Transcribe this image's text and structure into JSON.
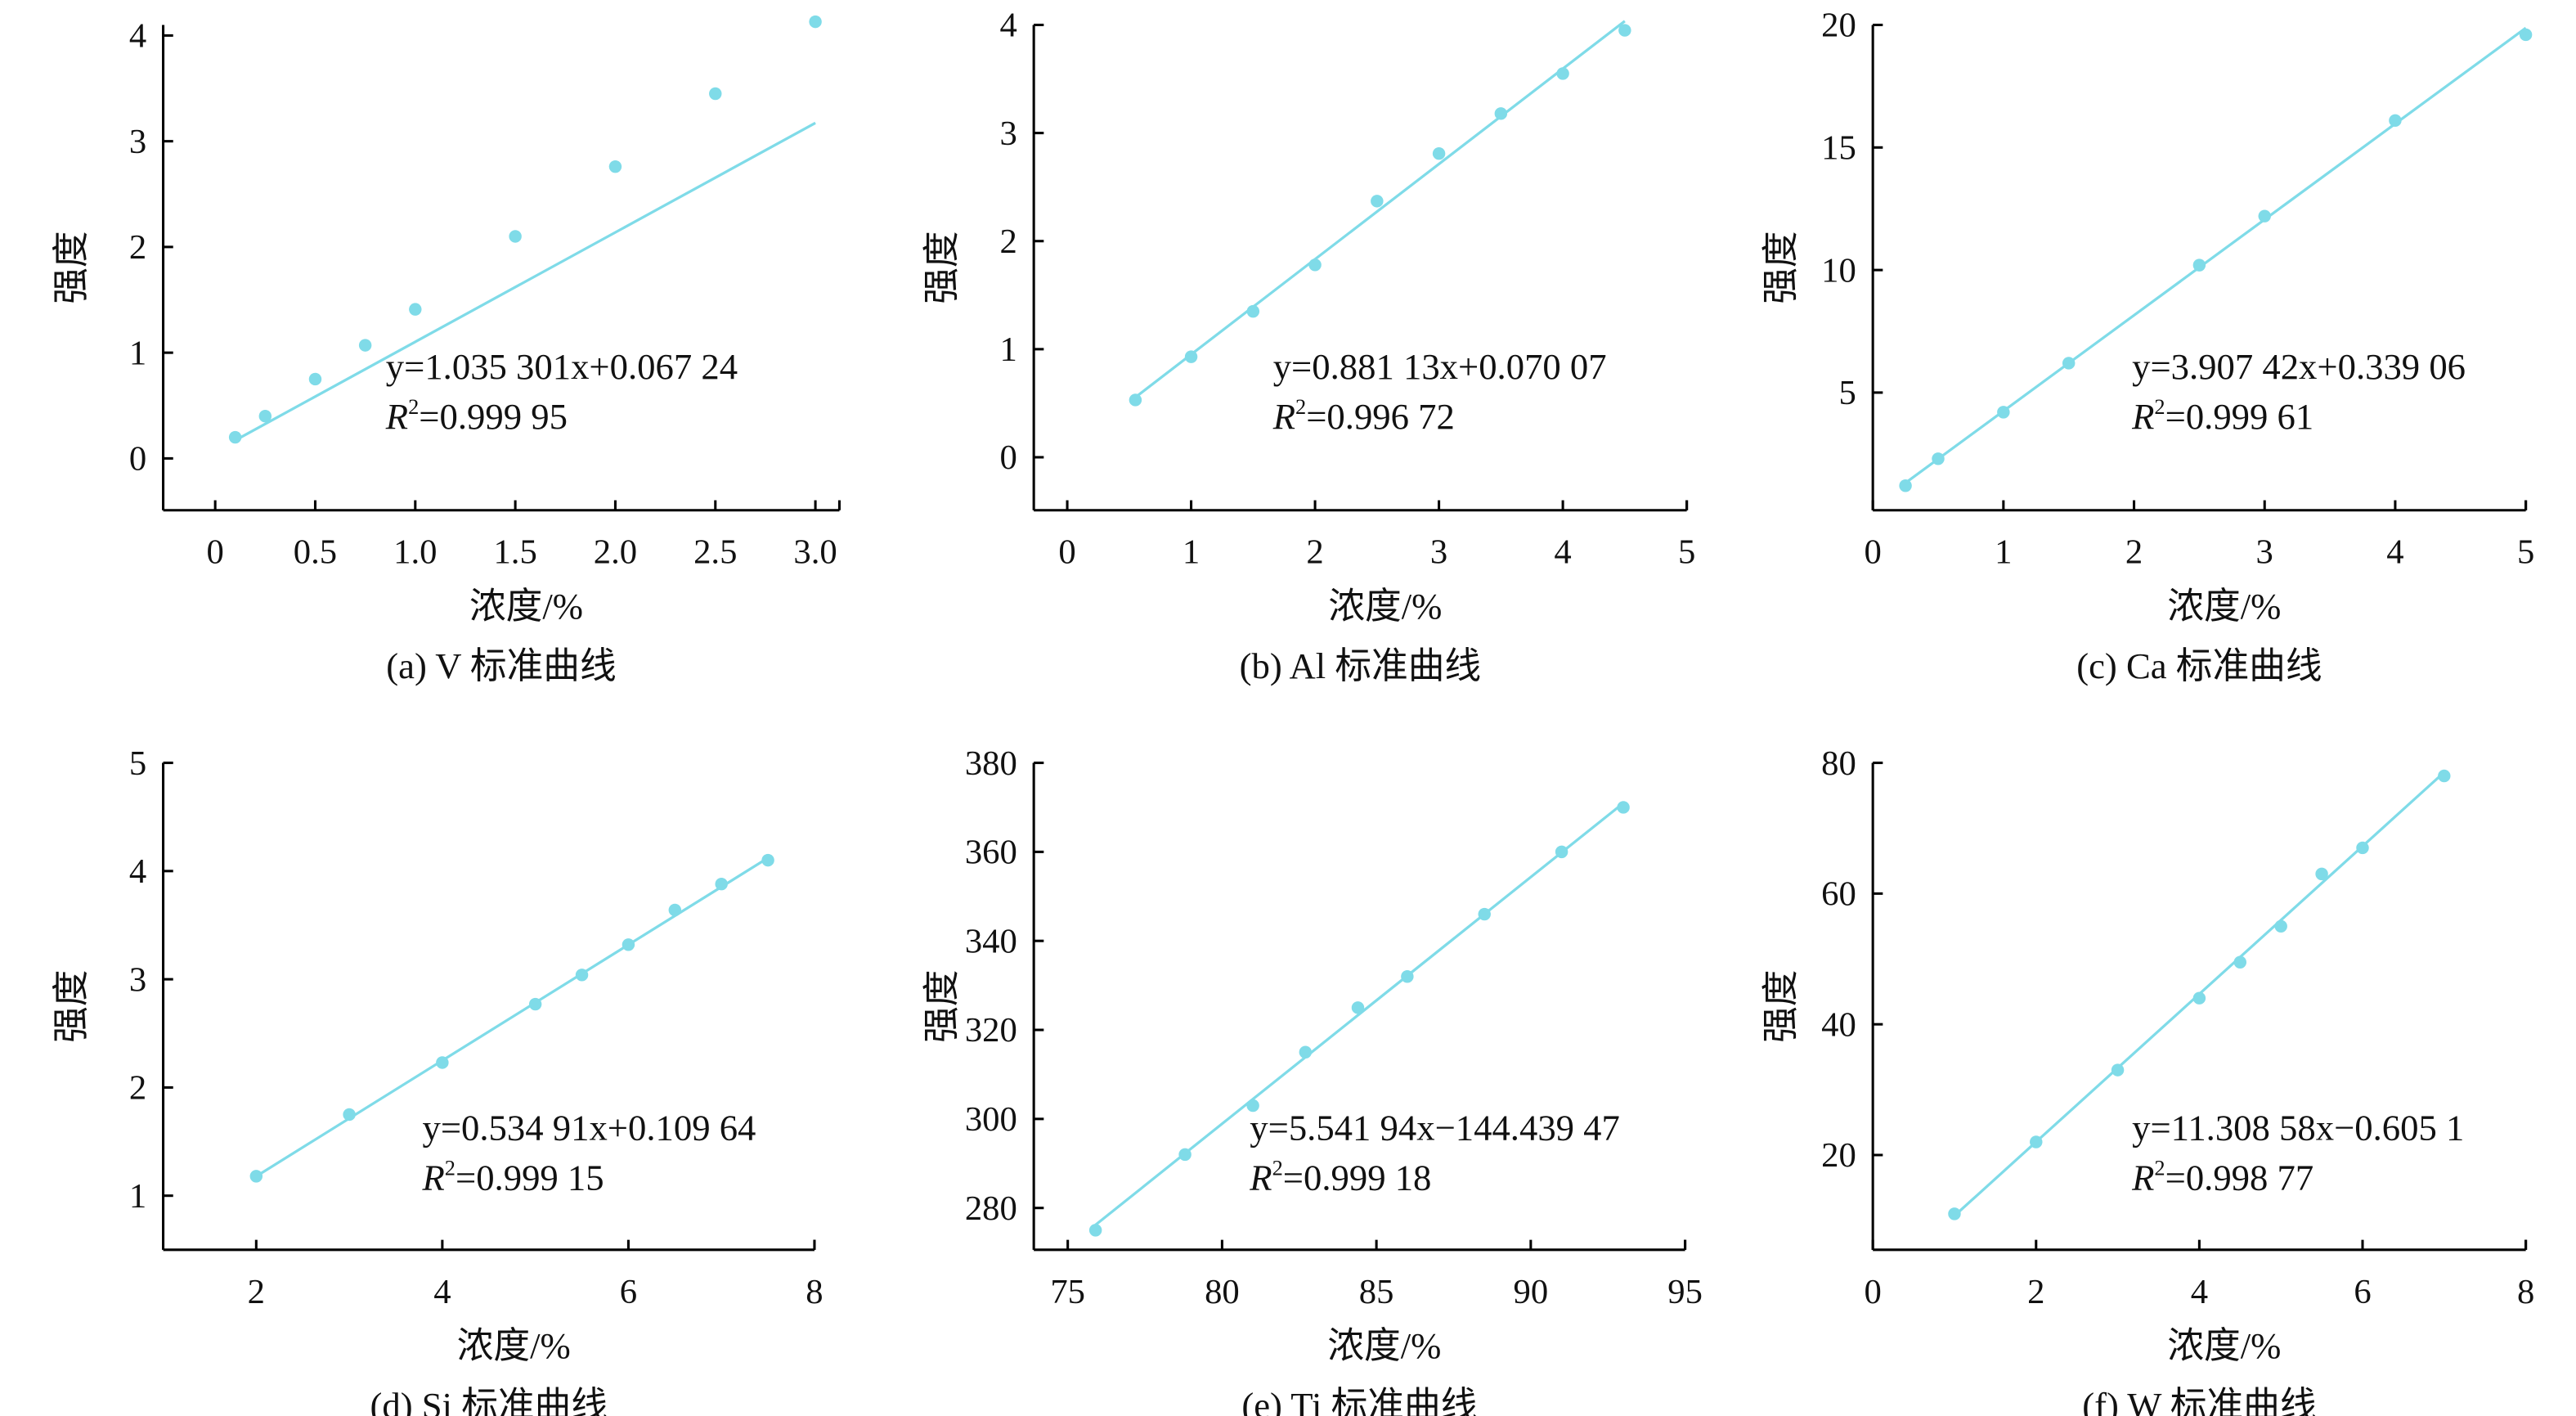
{
  "chart_data": [
    {
      "type": "scatter",
      "caption": "(a) V 标准曲线",
      "xlabel": "浓度/%",
      "ylabel": "强度",
      "xlim": [
        -0.26,
        3.12
      ],
      "ylim": [
        -0.49,
        4.1
      ],
      "xticks": [
        0,
        0.5,
        1.0,
        1.5,
        2.0,
        2.5,
        3.0
      ],
      "xtick_labels": [
        "0",
        "0.5",
        "1.0",
        "1.5",
        "2.0",
        "2.5",
        "3.0"
      ],
      "yticks": [
        0,
        1,
        2,
        3,
        4
      ],
      "ytick_labels": [
        "0",
        "1",
        "2",
        "3",
        "4"
      ],
      "x": [
        0.1,
        0.25,
        0.5,
        0.75,
        1.0,
        1.5,
        2.0,
        2.5,
        3.0
      ],
      "y": [
        0.2,
        0.4,
        0.75,
        1.07,
        1.41,
        2.1,
        2.76,
        3.45,
        4.13
      ],
      "fit": {
        "slope": 1.035301,
        "intercept": 0.06724
      },
      "equation": "y=1.035 301x+0.067 24",
      "r2_label": "R",
      "r2_value": "=0.999 95",
      "color": "#7fdbe8"
    },
    {
      "type": "scatter",
      "caption": "(b) Al 标准曲线",
      "xlabel": "浓度/%",
      "ylabel": "强度",
      "xlim": [
        -0.27,
        5
      ],
      "ylim": [
        -0.49,
        4
      ],
      "xticks": [
        0,
        1,
        2,
        3,
        4,
        5
      ],
      "xtick_labels": [
        "0",
        "1",
        "2",
        "3",
        "4",
        "5"
      ],
      "yticks": [
        0,
        1,
        2,
        3,
        4
      ],
      "ytick_labels": [
        "0",
        "1",
        "2",
        "3",
        "4"
      ],
      "x": [
        0.55,
        1,
        1.5,
        2,
        2.5,
        3,
        3.5,
        4,
        4.5
      ],
      "y": [
        0.53,
        0.93,
        1.35,
        1.78,
        2.37,
        2.81,
        3.18,
        3.55,
        3.95
      ],
      "fit": {
        "slope": 0.88113,
        "intercept": 0.07007
      },
      "equation": "y=0.881 13x+0.070 07",
      "r2_label": "R",
      "r2_value": "=0.996 72",
      "color": "#7fdbe8"
    },
    {
      "type": "scatter",
      "caption": "(c) Ca 标准曲线",
      "xlabel": "浓度/%",
      "ylabel": "强度",
      "xlim": [
        0,
        5
      ],
      "ylim": [
        0.2,
        20
      ],
      "xticks": [
        0,
        1,
        2,
        3,
        4,
        5
      ],
      "xtick_labels": [
        "0",
        "1",
        "2",
        "3",
        "4",
        "5"
      ],
      "yticks": [
        5,
        10,
        15,
        20
      ],
      "ytick_labels": [
        "5",
        "10",
        "15",
        "20"
      ],
      "x": [
        0.25,
        0.5,
        1,
        1.5,
        2.5,
        3,
        4,
        5
      ],
      "y": [
        1.2,
        2.3,
        4.2,
        6.2,
        10.2,
        12.2,
        16.1,
        19.6
      ],
      "fit": {
        "slope": 3.90742,
        "intercept": 0.33906
      },
      "equation": "y=3.907 42x+0.339 06",
      "r2_label": "R",
      "r2_value": "=0.999 61",
      "color": "#7fdbe8"
    },
    {
      "type": "scatter",
      "caption": "(d) Si 标准曲线",
      "xlabel": "浓度/%",
      "ylabel": "强度",
      "xlim": [
        1,
        8
      ],
      "ylim": [
        0.5,
        5
      ],
      "xticks": [
        2,
        4,
        6,
        8
      ],
      "xtick_labels": [
        "2",
        "4",
        "6",
        "8"
      ],
      "yticks": [
        1,
        2,
        3,
        4,
        5
      ],
      "ytick_labels": [
        "1",
        "2",
        "3",
        "4",
        "5"
      ],
      "x": [
        2,
        3,
        4,
        5,
        5.5,
        6,
        6.5,
        7,
        7.5
      ],
      "y": [
        1.18,
        1.75,
        2.23,
        2.77,
        3.04,
        3.32,
        3.64,
        3.88,
        4.1
      ],
      "fit": {
        "slope": 0.53491,
        "intercept": 0.10964
      },
      "equation": "y=0.534 91x+0.109 64",
      "r2_label": "R",
      "r2_value": "=0.999 15",
      "color": "#7fdbe8"
    },
    {
      "type": "scatter",
      "caption": "(e) Ti 标准曲线",
      "xlabel": "浓度/%",
      "ylabel": "强度",
      "xlim": [
        73.9,
        95
      ],
      "ylim": [
        270.6,
        380
      ],
      "xticks": [
        75,
        80,
        85,
        90,
        95
      ],
      "xtick_labels": [
        "75",
        "80",
        "85",
        "90",
        "95"
      ],
      "yticks": [
        280,
        300,
        320,
        340,
        360,
        380
      ],
      "ytick_labels": [
        "280",
        "300",
        "320",
        "340",
        "360",
        "380"
      ],
      "x": [
        75.9,
        78.8,
        81,
        82.7,
        84.4,
        86,
        88.5,
        91,
        93
      ],
      "y": [
        275,
        292,
        303,
        315,
        325,
        332,
        346,
        360,
        370
      ],
      "fit": {
        "slope": 5.54194,
        "intercept": -144.43947
      },
      "equation": "y=5.541 94x−144.439 47",
      "r2_label": "R",
      "r2_value": "=0.999 18",
      "color": "#7fdbe8"
    },
    {
      "type": "scatter",
      "caption": "(f) W 标准曲线",
      "xlabel": "浓度/%",
      "ylabel": "强度",
      "xlim": [
        0,
        8
      ],
      "ylim": [
        5.5,
        80
      ],
      "xticks": [
        0,
        2,
        4,
        6,
        8
      ],
      "xtick_labels": [
        "0",
        "2",
        "4",
        "6",
        "8"
      ],
      "yticks": [
        20,
        40,
        60,
        80
      ],
      "ytick_labels": [
        "20",
        "40",
        "60",
        "80"
      ],
      "x": [
        1,
        2,
        3,
        4,
        4.5,
        5,
        5.5,
        6,
        7
      ],
      "y": [
        11,
        22,
        33,
        44,
        49.5,
        55,
        63,
        67,
        78
      ],
      "fit": {
        "slope": 11.30858,
        "intercept": -0.6051
      },
      "equation": "y=11.308 58x−0.605 1",
      "r2_label": "R",
      "r2_value": "=0.998 77",
      "color": "#7fdbe8"
    }
  ]
}
